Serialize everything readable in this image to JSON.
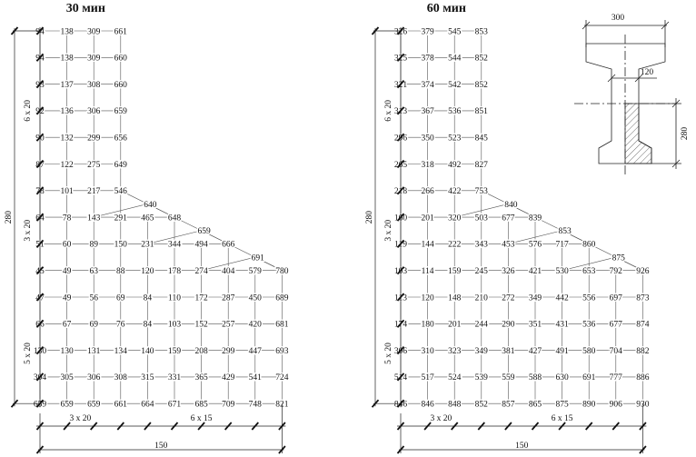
{
  "panels": [
    {
      "title": "30 мин",
      "grid": [
        [
          "94",
          "138",
          "309",
          "661"
        ],
        [
          "94",
          "138",
          "309",
          "660"
        ],
        [
          "93",
          "137",
          "308",
          "660"
        ],
        [
          "92",
          "136",
          "306",
          "659"
        ],
        [
          "90",
          "132",
          "299",
          "656"
        ],
        [
          "87",
          "122",
          "275",
          "649"
        ],
        [
          "78",
          "101",
          "217",
          "546"
        ],
        [
          "64",
          "78",
          "143",
          "291",
          "465",
          "648"
        ],
        [
          "51",
          "60",
          "89",
          "150",
          "231",
          "344",
          "494",
          "666"
        ],
        [
          "45",
          "49",
          "63",
          "88",
          "120",
          "178",
          "274",
          "404",
          "579",
          "780"
        ],
        [
          "47",
          "49",
          "56",
          "69",
          "84",
          "110",
          "172",
          "287",
          "450",
          "689"
        ],
        [
          "66",
          "67",
          "69",
          "76",
          "84",
          "103",
          "152",
          "257",
          "420",
          "681"
        ],
        [
          "130",
          "130",
          "131",
          "134",
          "140",
          "159",
          "208",
          "299",
          "447",
          "693"
        ],
        [
          "304",
          "305",
          "306",
          "308",
          "315",
          "331",
          "365",
          "429",
          "541",
          "724"
        ],
        [
          "659",
          "659",
          "659",
          "661",
          "664",
          "671",
          "685",
          "709",
          "748",
          "821"
        ]
      ],
      "slope": [
        "640",
        "659",
        "691"
      ]
    },
    {
      "title": "60 мин",
      "grid": [
        [
          "326",
          "379",
          "545",
          "853"
        ],
        [
          "325",
          "378",
          "544",
          "852"
        ],
        [
          "321",
          "374",
          "542",
          "852"
        ],
        [
          "313",
          "367",
          "536",
          "851"
        ],
        [
          "296",
          "350",
          "523",
          "845"
        ],
        [
          "265",
          "318",
          "492",
          "827"
        ],
        [
          "218",
          "266",
          "422",
          "753"
        ],
        [
          "160",
          "201",
          "320",
          "503",
          "677",
          "839"
        ],
        [
          "119",
          "144",
          "222",
          "343",
          "453",
          "576",
          "717",
          "860"
        ],
        [
          "103",
          "114",
          "159",
          "245",
          "326",
          "421",
          "530",
          "653",
          "792",
          "926"
        ],
        [
          "113",
          "120",
          "148",
          "210",
          "272",
          "349",
          "442",
          "556",
          "697",
          "873"
        ],
        [
          "174",
          "180",
          "201",
          "244",
          "290",
          "351",
          "431",
          "536",
          "677",
          "874"
        ],
        [
          "306",
          "310",
          "323",
          "349",
          "381",
          "427",
          "491",
          "580",
          "704",
          "882"
        ],
        [
          "514",
          "517",
          "524",
          "539",
          "559",
          "588",
          "630",
          "691",
          "777",
          "886"
        ],
        [
          "846",
          "846",
          "848",
          "852",
          "857",
          "865",
          "875",
          "890",
          "906",
          "930"
        ]
      ],
      "slope": [
        "840",
        "853",
        "875"
      ]
    }
  ],
  "dimensions": {
    "height_total": "280",
    "segment_top": "6 x 20",
    "segment_middle": "3 x 20",
    "segment_bottom": "5 x 20",
    "width_left": "3 x 20",
    "width_right": "6 x 15",
    "width_total": "150"
  },
  "section": {
    "flange_width": "300",
    "web_width": "120",
    "height": "280"
  }
}
